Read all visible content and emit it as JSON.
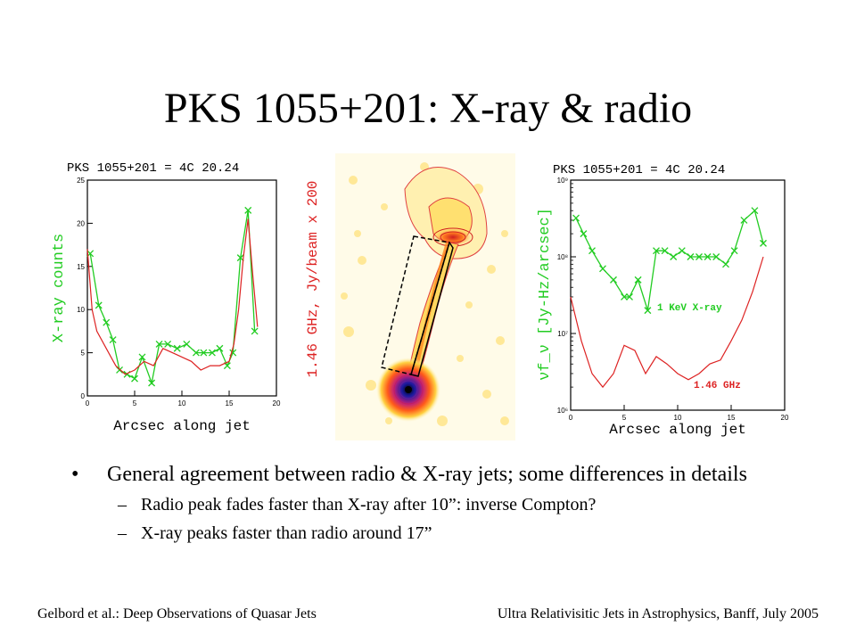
{
  "slide": {
    "title": "PKS 1055+201: X-ray & radio",
    "bullet": "General agreement between radio & X-ray jets; some differences in details",
    "subbullets": [
      "Radio peak fades faster than X-ray after 10”: inverse Compton?",
      "X-ray peaks faster than radio around 17”"
    ],
    "bullet_marker": "•",
    "dash_marker": "–",
    "footer_left": "Gelbord et al.: Deep Observations of Quasar Jets",
    "footer_right": "Ultra Relativisitic Jets in Astrophysics, Banff, July 2005"
  },
  "colors": {
    "xray": "#22cc22",
    "radio": "#dd2222",
    "axis": "#000000"
  },
  "chart_data": [
    {
      "type": "line",
      "title": "PKS 1055+201 = 4C 20.24",
      "xlabel": "Arcsec along jet",
      "ylabel_left": "X-ray counts",
      "ylabel_right": "1.46 GHz, Jy/beam x 200",
      "xlim": [
        0,
        20
      ],
      "ylim": [
        0,
        25
      ],
      "xticks": [
        0,
        5,
        10,
        15,
        20
      ],
      "yticks": [
        0,
        5,
        10,
        15,
        20,
        25
      ],
      "series": [
        {
          "name": "X-ray counts",
          "color": "#22cc22",
          "marker": "x",
          "x": [
            0.3,
            1.2,
            2.0,
            2.7,
            3.4,
            4.2,
            5.0,
            5.8,
            6.8,
            7.6,
            8.5,
            9.5,
            10.5,
            11.5,
            12.3,
            13.2,
            14.0,
            14.8,
            15.4,
            16.2,
            17.0,
            17.7
          ],
          "y": [
            16.5,
            10.5,
            8.5,
            6.5,
            3.0,
            2.5,
            2.0,
            4.5,
            1.5,
            6.0,
            6.0,
            5.5,
            6.0,
            5.0,
            5.0,
            5.0,
            5.5,
            3.5,
            5.0,
            16.0,
            21.5,
            7.5
          ]
        },
        {
          "name": "1.46 GHz",
          "color": "#dd2222",
          "marker": "none",
          "x": [
            0.0,
            0.5,
            1.0,
            2.0,
            3.0,
            4.0,
            5.0,
            6.0,
            7.0,
            8.0,
            9.0,
            10.0,
            11.0,
            12.0,
            13.0,
            14.0,
            15.0,
            15.5,
            16.0,
            16.5,
            17.0,
            17.5,
            18.0
          ],
          "y": [
            17.0,
            10.0,
            7.5,
            5.5,
            3.5,
            2.5,
            3.0,
            4.0,
            3.5,
            5.5,
            5.0,
            4.5,
            4.0,
            3.0,
            3.5,
            3.5,
            4.0,
            6.0,
            10.0,
            16.0,
            20.5,
            14.0,
            8.0
          ]
        }
      ]
    },
    {
      "type": "line",
      "title": "PKS 1055+201 = 4C 20.24",
      "xlabel": "Arcsec along jet",
      "ylabel": "νf_ν [Jy-Hz/arcsec]",
      "xlim": [
        0,
        20
      ],
      "ylim": [
        1000000.0,
        1000000000.0
      ],
      "yscale": "log",
      "xticks": [
        0,
        5,
        10,
        15,
        20
      ],
      "yticks": [
        1000000.0,
        10000000.0,
        100000000.0,
        1000000000.0
      ],
      "ytick_labels": [
        "10⁶",
        "10⁷",
        "10⁸",
        "10⁹"
      ],
      "annotations": [
        "1 KeV X-ray",
        "1.46 GHz"
      ],
      "series": [
        {
          "name": "1 KeV X-ray",
          "color": "#22cc22",
          "marker": "x",
          "x": [
            0.5,
            1.2,
            2.0,
            3.0,
            4.0,
            5.0,
            5.5,
            6.3,
            7.2,
            8.0,
            8.8,
            9.6,
            10.4,
            11.2,
            12.0,
            12.8,
            13.6,
            14.5,
            15.3,
            16.2,
            17.2,
            18.0
          ],
          "y": [
            320000000.0,
            200000000.0,
            120000000.0,
            70000000.0,
            50000000.0,
            30000000.0,
            30000000.0,
            50000000.0,
            20000000.0,
            120000000.0,
            120000000.0,
            100000000.0,
            120000000.0,
            100000000.0,
            100000000.0,
            100000000.0,
            100000000.0,
            80000000.0,
            120000000.0,
            300000000.0,
            400000000.0,
            150000000.0
          ]
        },
        {
          "name": "1.46 GHz",
          "color": "#dd2222",
          "marker": "none",
          "x": [
            0.0,
            1.0,
            2.0,
            3.0,
            4.0,
            5.0,
            6.0,
            7.0,
            8.0,
            9.0,
            10.0,
            11.0,
            12.0,
            13.0,
            14.0,
            15.0,
            16.0,
            17.0,
            18.0
          ],
          "y": [
            30000000.0,
            8000000.0,
            3000000.0,
            2000000.0,
            3000000.0,
            7000000.0,
            6000000.0,
            3000000.0,
            5000000.0,
            4000000.0,
            3000000.0,
            2500000.0,
            3000000.0,
            4000000.0,
            4500000.0,
            8000000.0,
            15000000.0,
            35000000.0,
            100000000.0
          ]
        }
      ]
    }
  ]
}
